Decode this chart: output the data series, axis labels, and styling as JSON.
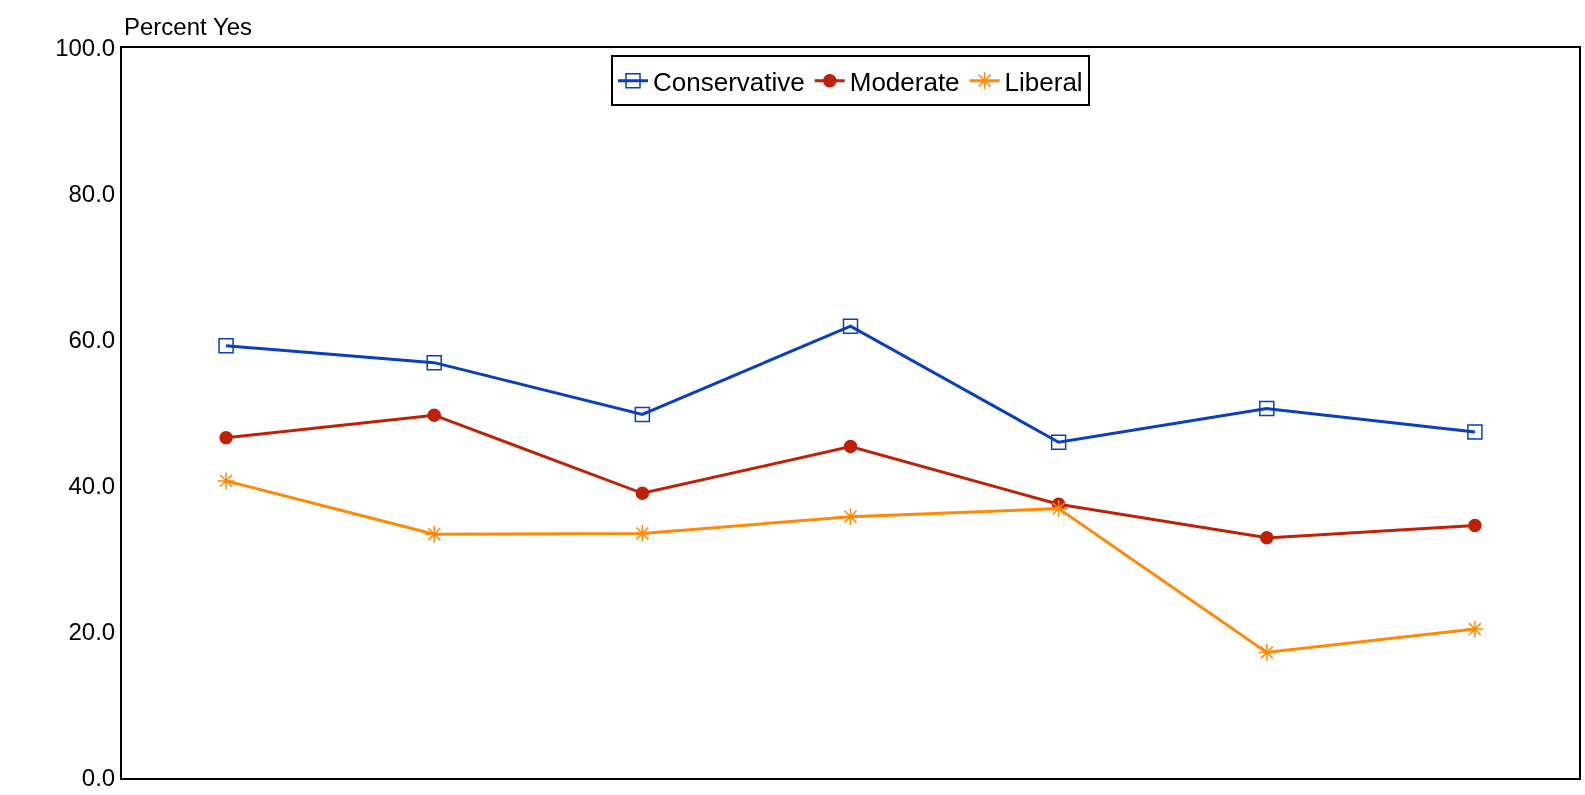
{
  "chart_data": {
    "type": "line",
    "ylabel": "Percent Yes",
    "categories": [
      null,
      null,
      null,
      null,
      null,
      null,
      null
    ],
    "series": [
      {
        "name": "Conservative",
        "color": "#0a3fbf",
        "marker": "square",
        "values": [
          59.2,
          56.9,
          49.8,
          61.9,
          46.0,
          50.6,
          47.4
        ]
      },
      {
        "name": "Moderate",
        "color": "#bf2106",
        "marker": "circle",
        "values": [
          46.6,
          49.7,
          39.0,
          45.4,
          37.5,
          32.9,
          34.6
        ]
      },
      {
        "name": "Liberal",
        "color": "#ff8a0a",
        "marker": "cross",
        "values": [
          40.7,
          33.4,
          33.5,
          35.8,
          36.9,
          17.2,
          20.4
        ]
      }
    ],
    "ylim": [
      0,
      100
    ],
    "yticks": [
      {
        "value": 0,
        "label": "0.0"
      },
      {
        "value": 20,
        "label": "20.0"
      },
      {
        "value": 40,
        "label": "40.0"
      },
      {
        "value": 60,
        "label": "60.0"
      },
      {
        "value": 80,
        "label": "80.0"
      },
      {
        "value": 100,
        "label": "100.0"
      }
    ],
    "tick_labels": "y",
    "legend": "top",
    "line_style": "solid"
  }
}
